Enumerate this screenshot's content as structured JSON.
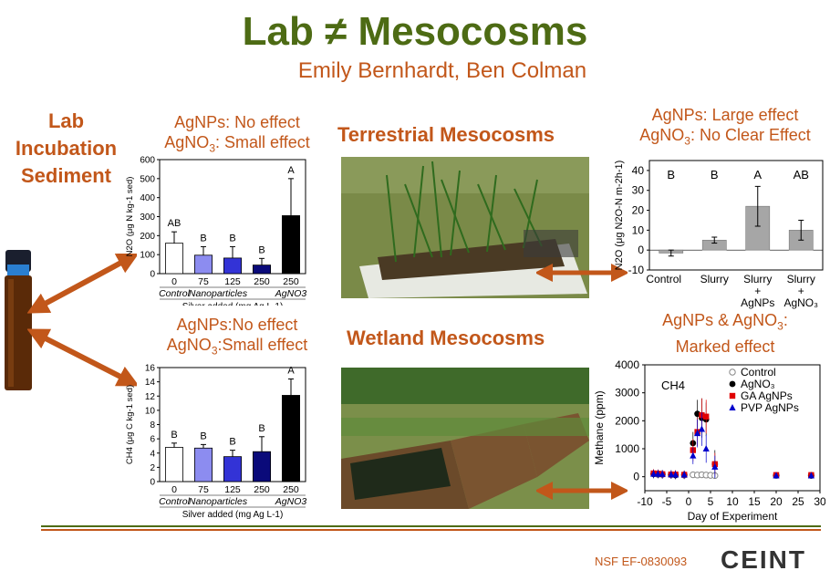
{
  "header": {
    "title": "Lab ≠ Mesocosms",
    "authors": "Emily Bernhardt, Ben Colman"
  },
  "lab": {
    "title_lines": [
      "Lab",
      "Incubation",
      "Sediment"
    ]
  },
  "notes": {
    "n2o_lab_line1": "AgNPs: No effect",
    "n2o_lab_line2a": "AgNO",
    "n2o_lab_line2b": "3",
    "n2o_lab_line2c": ": Small effect",
    "ch4_lab_line1": "AgNPs:No effect",
    "ch4_lab_line2a": "AgNO",
    "ch4_lab_line2b": "3",
    "ch4_lab_line2c": ":Small effect",
    "terr_line1": "AgNPs: Large effect",
    "terr_line2a": "AgNO",
    "terr_line2b": "3",
    "terr_line2c": ": No Clear Effect",
    "wet_line1a": "AgNPs & AgNO",
    "wet_line1b": "3",
    "wet_line1c": ":",
    "wet_line2": "Marked effect"
  },
  "sections": {
    "terrestrial": "Terrestrial Mesocosms",
    "wetland": "Wetland Mesocosms"
  },
  "footer": {
    "grant": "NSF EF-0830093",
    "logo": "CEINT"
  },
  "colors": {
    "accent_green": "#4d6b14",
    "accent_orange": "#c2571a"
  },
  "chart_data": [
    {
      "type": "bar",
      "title": "",
      "ylabel": "N2O (μg N kg-1 sed)",
      "xlabel": "Silver added (mg Ag L-1)",
      "ylim": [
        0,
        600
      ],
      "yticks": [
        0,
        100,
        200,
        300,
        400,
        500,
        600
      ],
      "categories": [
        "0",
        "75",
        "125",
        "250",
        "250"
      ],
      "groups": [
        "Control",
        "Nanoparticles",
        "AgNO3"
      ],
      "values": [
        160,
        97,
        82,
        45,
        305
      ],
      "errors": [
        60,
        45,
        60,
        35,
        195
      ],
      "letters": [
        "AB",
        "B",
        "B",
        "B",
        "A"
      ],
      "colors": [
        "#ffffff",
        "#8c8cf0",
        "#3333d6",
        "#0a0a7a",
        "#000000"
      ]
    },
    {
      "type": "bar",
      "title": "",
      "ylabel": "CH4 (μg C kg-1 sed)",
      "xlabel": "Silver added (mg Ag L-1)",
      "ylim": [
        0,
        16
      ],
      "yticks": [
        0,
        2,
        4,
        6,
        8,
        10,
        12,
        14,
        16
      ],
      "categories": [
        "0",
        "75",
        "125",
        "250",
        "250"
      ],
      "groups": [
        "Control",
        "Nanoparticles",
        "AgNO3"
      ],
      "values": [
        4.8,
        4.7,
        3.5,
        4.2,
        12.1
      ],
      "errors": [
        0.6,
        0.5,
        0.9,
        2.1,
        2.3
      ],
      "letters": [
        "B",
        "B",
        "B",
        "B",
        "A"
      ],
      "colors": [
        "#ffffff",
        "#8c8cf0",
        "#3333d6",
        "#0a0a7a",
        "#000000"
      ]
    },
    {
      "type": "bar",
      "title": "",
      "ylabel": "N2O (μg N2O-N m-2h-1)",
      "ylim": [
        -10,
        45
      ],
      "yticks": [
        -10,
        0,
        10,
        20,
        30,
        40
      ],
      "categories": [
        "Control",
        "Slurry",
        "Slurry + AgNPs",
        "Slurry + AgNO3"
      ],
      "values": [
        -1.5,
        5,
        22,
        10
      ],
      "errors": [
        1.5,
        1.5,
        10,
        5
      ],
      "letters": [
        "B",
        "B",
        "A",
        "AB"
      ],
      "colors": [
        "#a6a6a6",
        "#a6a6a6",
        "#a6a6a6",
        "#a6a6a6"
      ]
    },
    {
      "type": "scatter",
      "title": "CH4",
      "xlabel": "Day of Experiment",
      "ylabel": "Methane (ppm)",
      "xlim": [
        -10,
        30
      ],
      "ylim": [
        -500,
        4000
      ],
      "xticks": [
        -10,
        -5,
        0,
        5,
        10,
        15,
        20,
        25,
        30
      ],
      "yticks": [
        0,
        1000,
        2000,
        3000,
        4000
      ],
      "legend_position": "top-right",
      "series": [
        {
          "name": "Control",
          "color": "#888888",
          "marker": "open-circle",
          "x": [
            -8,
            -7,
            -6,
            -4,
            -3,
            -1,
            1,
            2,
            3,
            4,
            5,
            6,
            20,
            28
          ],
          "y": [
            100,
            80,
            90,
            70,
            60,
            60,
            70,
            60,
            70,
            60,
            50,
            40,
            40,
            50
          ],
          "err": []
        },
        {
          "name": "AgNO3",
          "color": "#000000",
          "marker": "circle",
          "x": [
            -8,
            -7,
            -6,
            -4,
            -3,
            -1,
            1,
            2,
            3,
            4,
            6,
            20,
            28
          ],
          "y": [
            100,
            100,
            80,
            80,
            60,
            70,
            1200,
            2250,
            2100,
            2050,
            450,
            50,
            40
          ],
          "err": [
            150,
            150,
            150,
            150,
            150,
            150,
            400,
            500,
            700,
            600,
            500,
            100,
            100
          ]
        },
        {
          "name": "GA AgNPs",
          "color": "#e00000",
          "marker": "square",
          "x": [
            -8,
            -7,
            -6,
            -4,
            -3,
            -1,
            1,
            2,
            3,
            4,
            6,
            20,
            28
          ],
          "y": [
            120,
            110,
            90,
            80,
            80,
            70,
            950,
            1600,
            2200,
            2150,
            450,
            60,
            60
          ],
          "err": [
            150,
            150,
            150,
            150,
            150,
            150,
            400,
            500,
            600,
            600,
            400,
            100,
            100
          ]
        },
        {
          "name": "PVP AgNPs",
          "color": "#0000cc",
          "marker": "triangle",
          "x": [
            -8,
            -7,
            -6,
            -4,
            -3,
            -1,
            1,
            2,
            3,
            4,
            6,
            20,
            28
          ],
          "y": [
            100,
            100,
            90,
            80,
            70,
            70,
            750,
            1550,
            1700,
            1000,
            350,
            40,
            40
          ],
          "err": [
            150,
            150,
            150,
            150,
            150,
            150,
            300,
            500,
            600,
            500,
            400,
            100,
            100
          ]
        }
      ]
    }
  ]
}
